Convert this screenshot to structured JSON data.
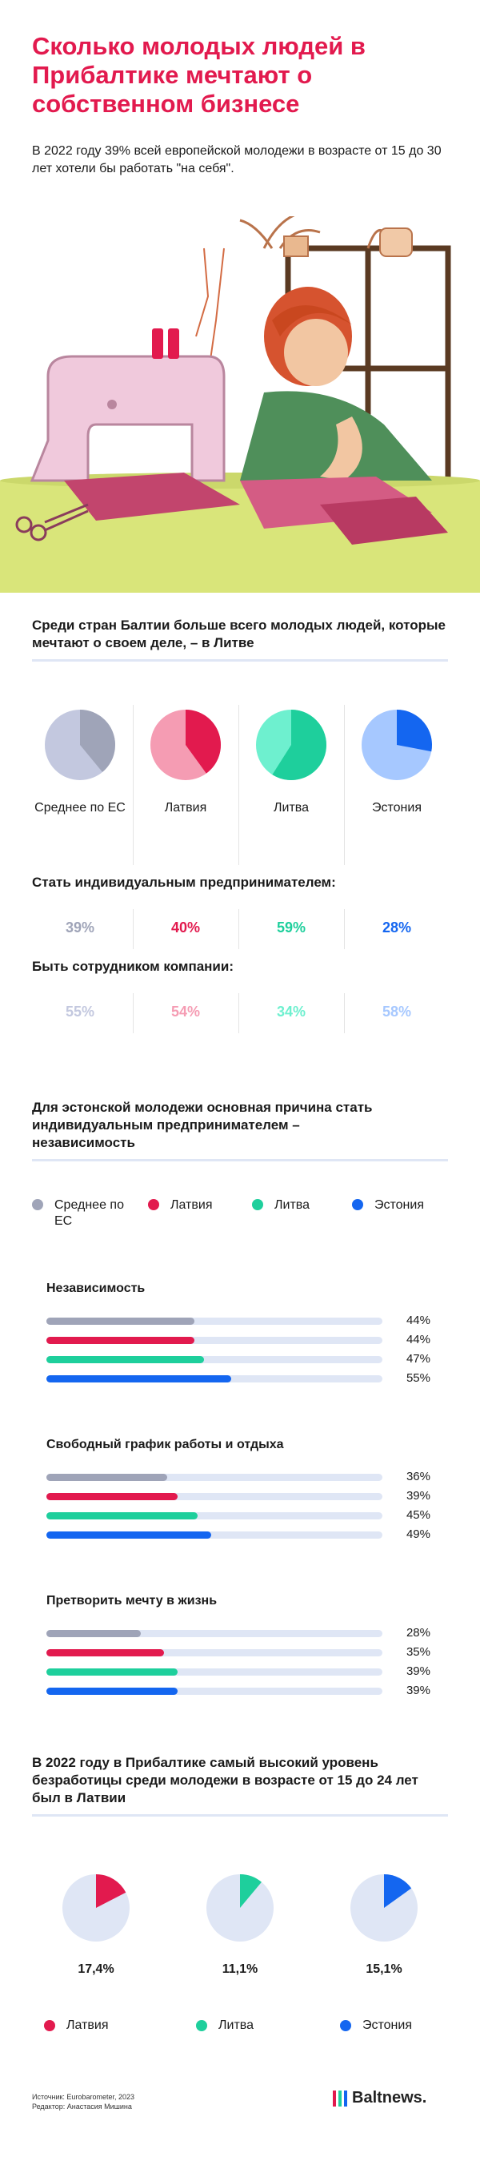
{
  "header": {
    "title": "Сколько молодых людей в Прибалтике мечтают о собственном бизнесе",
    "intro": "В 2022 году 39% всей европейской молодежи в возрасте от 15 до 30 лет хотели бы работать \"на себя\"."
  },
  "colors": {
    "eu": "#9fa4b8",
    "latvia": "#e21a4e",
    "lithuania": "#1ecf9c",
    "estonia": "#1466f0",
    "eu_light": "#c3c8df",
    "latvia_light": "#f59cb3",
    "lithuania_light": "#6ef0cf",
    "estonia_light": "#a6c8ff",
    "track": "#dfe6f5"
  },
  "section1": {
    "heading": "Среди стран Балтии больше всего молодых людей, которые мечтают о своем деле, – в Литве",
    "entrepreneur_label": "Стать индивидуальным предпринимателем:",
    "employee_label": "Быть сотрудником компании:"
  },
  "section2": {
    "heading": "Для эстонской молодежи основная причина стать индивидуальным предпринимателем – независимость"
  },
  "section3": {
    "heading": "В 2022 году в Прибалтике самый высокий уровень безработицы среди молодежи в возрасте от 15 до 24 лет был в Латвии"
  },
  "chart_data": [
    {
      "type": "pie",
      "categories": [
        "Среднее по ЕС",
        "Латвия",
        "Литва",
        "Эстония"
      ],
      "series": [
        {
          "name": "Стать индивидуальным предпринимателем:",
          "values": [
            39,
            40,
            59,
            28
          ],
          "labels": [
            "39%",
            "40%",
            "59%",
            "28%"
          ]
        },
        {
          "name": "Быть сотрудником компании:",
          "values": [
            55,
            54,
            34,
            58
          ],
          "labels": [
            "55%",
            "54%",
            "34%",
            "58%"
          ]
        }
      ]
    },
    {
      "type": "bar",
      "legend": [
        "Среднее по ЕС",
        "Латвия",
        "Литва",
        "Эстония"
      ],
      "xlim": [
        0,
        100
      ],
      "groups": [
        {
          "name": "Независимость",
          "values": [
            44,
            44,
            47,
            55
          ],
          "labels": [
            "44%",
            "44%",
            "47%",
            "55%"
          ]
        },
        {
          "name": "Свободный график работы и отдыха",
          "values": [
            36,
            39,
            45,
            49
          ],
          "labels": [
            "36%",
            "39%",
            "45%",
            "49%"
          ]
        },
        {
          "name": "Претворить мечту в жизнь",
          "values": [
            28,
            35,
            39,
            39
          ],
          "labels": [
            "28%",
            "35%",
            "39%",
            "39%"
          ]
        }
      ]
    },
    {
      "type": "pie",
      "categories": [
        "Латвия",
        "Литва",
        "Эстония"
      ],
      "values": [
        17.4,
        11.1,
        15.1
      ],
      "labels": [
        "17,4%",
        "11,1%",
        "15,1%"
      ]
    }
  ],
  "footer": {
    "source": "Источник: Eurobarometer, 2023",
    "editor": "Редактор: Анастасия Мишина",
    "logo": "Baltnews."
  }
}
